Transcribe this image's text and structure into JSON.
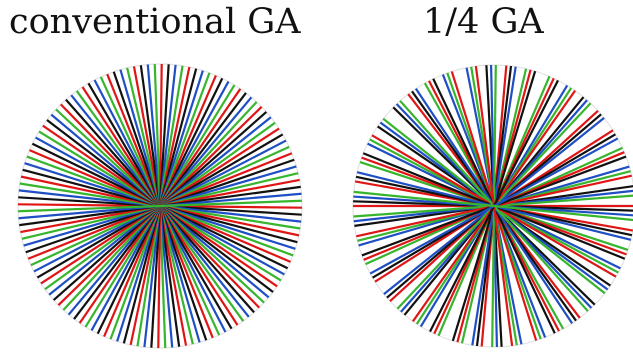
{
  "panels": [
    {
      "title": "conventional GA",
      "line_count": 64,
      "order": "sequential",
      "colors": [
        "#e01515",
        "#111111",
        "#1f4fc4",
        "#37b52d"
      ]
    },
    {
      "title": "1/4 GA",
      "line_count": 64,
      "order": "golden-angle-quarter",
      "colors": [
        "#e01515",
        "#111111",
        "#1f4fc4",
        "#37b52d"
      ]
    }
  ],
  "circle_color": "#e3e3e3"
}
